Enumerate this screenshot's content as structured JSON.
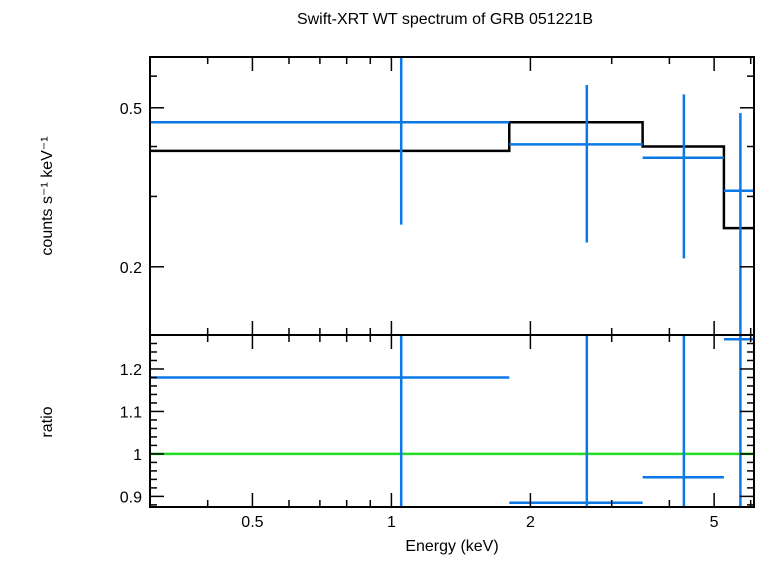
{
  "chart_data": {
    "type": "scatter",
    "title": "Swift-XRT WT spectrum of GRB 051221B",
    "xlabel": "Energy (keV)",
    "xscale": "log",
    "xlim": [
      0.3,
      6.1
    ],
    "x_ticks": [
      0.5,
      1,
      2,
      5
    ],
    "x_tick_labels": [
      "0.5",
      "1",
      "2",
      "5"
    ],
    "panels": [
      {
        "id": "spectrum",
        "ylabel": "counts s⁻¹ keV⁻¹",
        "yscale": "log",
        "ylim": [
          0.135,
          0.67
        ],
        "y_ticks": [
          0.2,
          0.5
        ],
        "y_tick_labels": [
          "0.2",
          "0.5"
        ],
        "data": {
          "name": "data",
          "color": "#0a78e6",
          "points": [
            {
              "x": 1.05,
              "xlo": 0.3,
              "xhi": 1.8,
              "y": 0.46,
              "ylo": 0.255,
              "yhi": 0.67
            },
            {
              "x": 2.65,
              "xlo": 1.8,
              "xhi": 3.5,
              "y": 0.405,
              "ylo": 0.23,
              "yhi": 0.57
            },
            {
              "x": 4.3,
              "xlo": 3.5,
              "xhi": 5.25,
              "y": 0.375,
              "ylo": 0.21,
              "yhi": 0.54
            },
            {
              "x": 5.7,
              "xlo": 5.25,
              "xhi": 6.1,
              "y": 0.31,
              "ylo": 0.135,
              "yhi": 0.485
            }
          ]
        },
        "model": {
          "name": "model",
          "color": "#000000",
          "steps": [
            {
              "xlo": 0.3,
              "xhi": 1.8,
              "y": 0.39
            },
            {
              "xlo": 1.8,
              "xhi": 3.5,
              "y": 0.46
            },
            {
              "xlo": 3.5,
              "xhi": 5.25,
              "y": 0.4
            },
            {
              "xlo": 5.25,
              "xhi": 6.1,
              "y": 0.25
            }
          ]
        }
      },
      {
        "id": "ratio",
        "ylabel": "ratio",
        "yscale": "linear",
        "ylim": [
          0.875,
          1.28
        ],
        "y_ticks": [
          0.9,
          1,
          1.1,
          1.2
        ],
        "y_tick_labels": [
          "0.9",
          "1",
          "1.1",
          "1.2"
        ],
        "reference_line": {
          "y": 1,
          "color": "#22dd22"
        },
        "data": {
          "name": "ratio",
          "color": "#0a78e6",
          "points": [
            {
              "x": 1.05,
              "xlo": 0.3,
              "xhi": 1.8,
              "y": 1.18,
              "ylo": 0.875,
              "yhi": 1.28
            },
            {
              "x": 2.65,
              "xlo": 1.8,
              "xhi": 3.5,
              "y": 0.885,
              "ylo": 0.875,
              "yhi": 1.28
            },
            {
              "x": 4.3,
              "xlo": 3.5,
              "xhi": 5.25,
              "y": 0.945,
              "ylo": 0.875,
              "yhi": 1.28
            },
            {
              "x": 5.7,
              "xlo": 5.25,
              "xhi": 6.1,
              "y": 1.27,
              "ylo": 0.875,
              "yhi": 1.28
            }
          ]
        }
      }
    ]
  }
}
